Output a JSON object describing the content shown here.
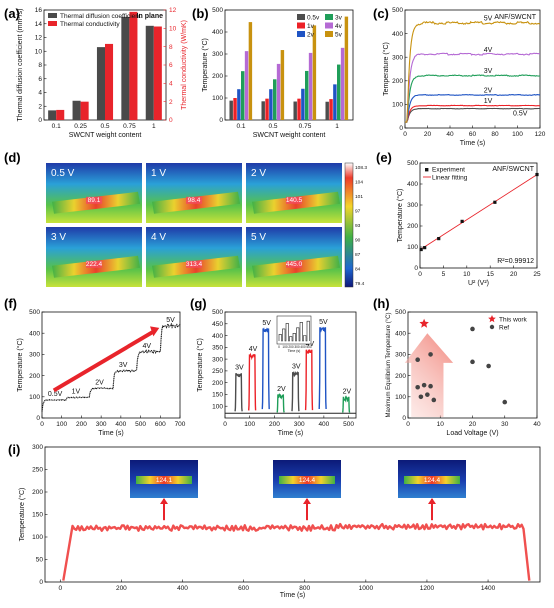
{
  "panel_labels": {
    "a": "(a)",
    "b": "(b)",
    "c": "(c)",
    "d": "(d)",
    "e": "(e)",
    "f": "(f)",
    "g": "(g)",
    "h": "(h)",
    "i": "(i)"
  },
  "colors": {
    "bar_dark": "#4a4a4a",
    "bar_red": "#e8242b",
    "v05": "#4d4d4d",
    "v1": "#ec2127",
    "v2": "#1f54c4",
    "v3": "#1f9e59",
    "v4": "#b56ad4",
    "v5": "#c8920f",
    "fit": "#e8242b",
    "ref": "#444444",
    "star": "#e8242b",
    "line_i": "#f0504f"
  },
  "chart_data": [
    {
      "id": "a",
      "type": "bar",
      "categories": [
        "0.1",
        "0.25",
        "0.5",
        "0.75",
        "1"
      ],
      "series": [
        {
          "name": "Thermal diffusion coefficient",
          "values": [
            1.4,
            2.8,
            10.6,
            15.0,
            13.7
          ]
        },
        {
          "name": "Thermal conductivity",
          "values": [
            1.1,
            2.0,
            8.3,
            11.8,
            10.2
          ]
        }
      ],
      "xlabel": "SWCNT weight content",
      "ylabel_left": "Thermal diffusion coefficient (mm²/s)",
      "ylabel_right": "Thermal conductivity (W/mK)",
      "ylim_left": [
        0,
        16
      ],
      "ylim_right": [
        0,
        12
      ],
      "yticks_left": [
        "0",
        "2",
        "4",
        "6",
        "8",
        "10",
        "12",
        "14",
        "16"
      ],
      "yticks_right": [
        "0",
        "2",
        "4",
        "6",
        "8",
        "10",
        "12"
      ],
      "annotation": "In plane",
      "legend": "top-left"
    },
    {
      "id": "b",
      "type": "bar",
      "categories": [
        "0.1",
        "0.5",
        "0.75",
        "1"
      ],
      "series": [
        {
          "name": "0.5v",
          "values": [
            88,
            85,
            84,
            83
          ]
        },
        {
          "name": "1v",
          "values": [
            100,
            97,
            97,
            95
          ]
        },
        {
          "name": "2v",
          "values": [
            140,
            140,
            142,
            162
          ]
        },
        {
          "name": "3v",
          "values": [
            222,
            185,
            223,
            252
          ]
        },
        {
          "name": "4v",
          "values": [
            313,
            255,
            305,
            328
          ]
        },
        {
          "name": "5v",
          "values": [
            445,
            318,
            430,
            470
          ]
        }
      ],
      "xlabel": "SWCNT weight content",
      "ylabel": "Temperature (°C)",
      "ylim": [
        0,
        500
      ],
      "yticks": [
        "0",
        "100",
        "200",
        "300",
        "400",
        "500"
      ],
      "legend": "top-right"
    },
    {
      "id": "c",
      "type": "line",
      "series": [
        {
          "name": "0.5V",
          "steady": 82
        },
        {
          "name": "1V",
          "steady": 95
        },
        {
          "name": "2V",
          "steady": 140
        },
        {
          "name": "3V",
          "steady": 222
        },
        {
          "name": "4V",
          "steady": 313
        },
        {
          "name": "5V",
          "steady": 445
        }
      ],
      "annotation": "ANF/SWCNT",
      "xlabel": "Time (s)",
      "ylabel": "Temperature (°C)",
      "xlim": [
        0,
        120
      ],
      "ylim": [
        0,
        500
      ],
      "xticks": [
        "0",
        "20",
        "40",
        "60",
        "80",
        "100",
        "120"
      ],
      "yticks": [
        "0",
        "100",
        "200",
        "300",
        "400",
        "500"
      ]
    },
    {
      "id": "e",
      "type": "scatter",
      "x": [
        0.25,
        1,
        4,
        9,
        16,
        25
      ],
      "y": [
        88,
        97,
        140,
        222,
        313,
        445
      ],
      "fit": {
        "slope": 14.3,
        "intercept": 87,
        "r2_label": "R²=0.99912"
      },
      "legend_points": "Experiment",
      "legend_fit": "Linear fitting",
      "annotation": "ANF/SWCNT",
      "xlabel": "U² (V²)",
      "ylabel": "Temperature (°C)",
      "xlim": [
        0,
        25
      ],
      "ylim": [
        0,
        500
      ],
      "xticks": [
        "0",
        "5",
        "10",
        "15",
        "20",
        "25"
      ],
      "yticks": [
        "0",
        "100",
        "200",
        "300",
        "400",
        "500"
      ]
    },
    {
      "id": "f",
      "type": "line",
      "steps": [
        {
          "label": "0.5V",
          "start": 0,
          "end": 120,
          "temp": 85
        },
        {
          "label": "1V",
          "start": 120,
          "end": 240,
          "temp": 97
        },
        {
          "label": "2V",
          "start": 240,
          "end": 360,
          "temp": 140
        },
        {
          "label": "3V",
          "start": 360,
          "end": 480,
          "temp": 222
        },
        {
          "label": "4V",
          "start": 480,
          "end": 600,
          "temp": 313
        },
        {
          "label": "5V",
          "start": 600,
          "end": 710,
          "temp": 435
        }
      ],
      "xlabel": "Time (s)",
      "ylabel": "Temperature (°C)",
      "xlim": [
        0,
        700
      ],
      "ylim": [
        0,
        500
      ],
      "xticks": [
        "0",
        "100",
        "200",
        "300",
        "400",
        "500",
        "600",
        "700"
      ],
      "yticks": [
        "0",
        "100",
        "200",
        "300",
        "400",
        "500"
      ]
    },
    {
      "id": "g",
      "type": "line",
      "pulses": [
        {
          "label": "3V",
          "center": 55,
          "temp": 240,
          "color": "#4d4d4d"
        },
        {
          "label": "4V",
          "center": 110,
          "temp": 320,
          "color": "#ec2127"
        },
        {
          "label": "5V",
          "center": 165,
          "temp": 430,
          "color": "#1f54c4"
        },
        {
          "label": "2V",
          "center": 225,
          "temp": 150,
          "color": "#1f9e59"
        },
        {
          "label": "3V",
          "center": 285,
          "temp": 245,
          "color": "#4d4d4d"
        },
        {
          "label": "4V",
          "center": 340,
          "temp": 340,
          "color": "#ec2127"
        },
        {
          "label": "5V",
          "center": 395,
          "temp": 435,
          "color": "#1f54c4"
        },
        {
          "label": "2V",
          "center": 490,
          "temp": 140,
          "color": "#1f9e59"
        }
      ],
      "baseline": 70,
      "xlabel": "Time (s)",
      "ylabel": "Temperature (°C)",
      "xlim": [
        0,
        530
      ],
      "ylim": [
        50,
        500
      ],
      "xticks": [
        "0",
        "100",
        "200",
        "300",
        "400",
        "500"
      ],
      "yticks": [
        "100",
        "150",
        "200",
        "250",
        "300",
        "350",
        "400",
        "450",
        "500"
      ],
      "inset": {
        "xlabel": "Time (s)",
        "xticks": [
          "0",
          "100",
          "200",
          "300",
          "400",
          "500"
        ]
      }
    },
    {
      "id": "h",
      "type": "scatter",
      "this_work": {
        "name": "This work",
        "x": 5,
        "y": 445
      },
      "ref": {
        "name": "Ref",
        "x": [
          3,
          3,
          4,
          5,
          6,
          7,
          7,
          8,
          20,
          20,
          25,
          30
        ],
        "y": [
          275,
          145,
          100,
          155,
          110,
          300,
          150,
          85,
          420,
          265,
          245,
          75
        ]
      },
      "xlabel": "Load Voltage (V)",
      "ylabel": "Maximum Equilibrium Temperature (°C)",
      "xlim": [
        0,
        40
      ],
      "ylim": [
        0,
        500
      ],
      "xticks": [
        "0",
        "10",
        "20",
        "30",
        "40"
      ],
      "yticks": [
        "0",
        "100",
        "200",
        "300",
        "400",
        "500"
      ]
    },
    {
      "id": "i",
      "type": "line",
      "steady": 124,
      "rise_start": 10,
      "rise_end": 40,
      "end": 1520,
      "xlabel": "Time (s)",
      "ylabel": "Temperature (°C)",
      "xlim": [
        -50,
        1570
      ],
      "ylim": [
        0,
        300
      ],
      "xticks": [
        "0",
        "200",
        "400",
        "600",
        "800",
        "1000",
        "1200",
        "1400"
      ],
      "yticks": [
        "0",
        "50",
        "100",
        "150",
        "200",
        "250",
        "300"
      ]
    }
  ],
  "thermal_images_d": [
    {
      "voltage": "0.5 V",
      "reading": "89.1"
    },
    {
      "voltage": "1 V",
      "reading": "98.4"
    },
    {
      "voltage": "2 V",
      "reading": "140.5"
    },
    {
      "voltage": "3 V",
      "reading": "222.4"
    },
    {
      "voltage": "4 V",
      "reading": "313.4"
    },
    {
      "voltage": "5 V",
      "reading": "445.0"
    }
  ],
  "colorbar_d": {
    "ticks": [
      "108.3",
      "104",
      "101",
      "97",
      "93",
      "90",
      "87",
      "84",
      "79.4"
    ]
  },
  "thermal_images_i": [
    "124.1",
    "124.4",
    "124.4"
  ]
}
